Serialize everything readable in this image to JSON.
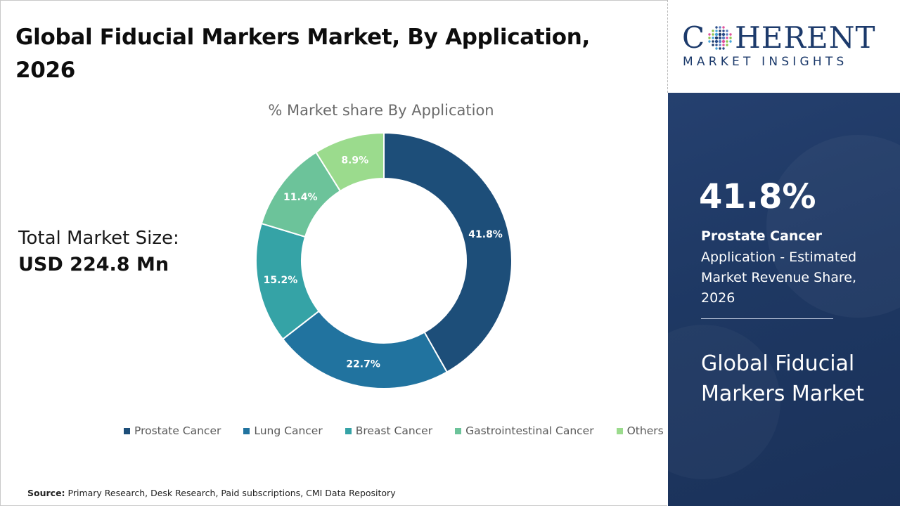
{
  "header": {
    "title": "Global Fiducial Markers Market, By Application, 2026"
  },
  "summary": {
    "total_label": "Total Market Size:",
    "total_value": "USD 224.8 Mn"
  },
  "source": {
    "label": "Source:",
    "text": "Primary Research, Desk Research, Paid subscriptions, CMI Data Repository"
  },
  "brand": {
    "name_left": "C",
    "name_right": "HERENT",
    "tagline": "MARKET INSIGHTS",
    "color": "#1c3a6b"
  },
  "highlight": {
    "value": "41.8%",
    "segment": "Prostate Cancer",
    "description": "Application - Estimated Market Revenue Share, 2026",
    "market_title": "Global Fiducial Markers Market"
  },
  "chart_data": {
    "type": "pie",
    "variant": "donut",
    "title": "% Market share By Application",
    "categories": [
      "Prostate Cancer",
      "Lung Cancer",
      "Breast Cancer",
      "Gastrointestinal Cancer",
      "Others"
    ],
    "values": [
      41.8,
      22.7,
      15.2,
      11.4,
      8.9
    ],
    "data_labels": [
      "41.8%",
      "22.7%",
      "15.2%",
      "11.4%",
      "8.9%"
    ],
    "colors": [
      "#1d4e79",
      "#21739f",
      "#35a3a6",
      "#6cc39a",
      "#9bdb8d"
    ],
    "start": "12 o'clock, clockwise",
    "legend_position": "bottom"
  }
}
